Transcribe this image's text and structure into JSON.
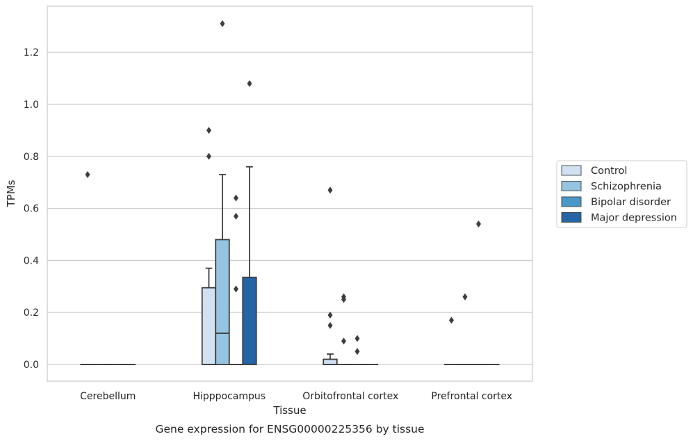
{
  "chart_data": {
    "type": "box",
    "xlabel": "Tissue",
    "ylabel": "TPMs",
    "caption": "Gene expression for ENSG00000225356 by tissue",
    "ylim": [
      -0.065,
      1.39
    ],
    "yticks": [
      "0.0",
      "0.2",
      "0.4",
      "0.6",
      "0.8",
      "1.0",
      "1.2"
    ],
    "grid": "horizontal",
    "legend_position": "right",
    "categories": [
      "Cerebellum",
      "Hipppocampus",
      "Orbitofrontal cortex",
      "Prefrontal cortex"
    ],
    "series": [
      {
        "name": "Control",
        "color": "#d0e1f2"
      },
      {
        "name": "Schizophrenia",
        "color": "#94c4df"
      },
      {
        "name": "Bipolar disorder",
        "color": "#4a98c9"
      },
      {
        "name": "Major depression",
        "color": "#2565a5"
      }
    ],
    "boxes": [
      {
        "category": "Cerebellum",
        "series": "Control",
        "q1": 0,
        "median": 0,
        "q3": 0,
        "whisker_low": 0,
        "whisker_high": 0,
        "outliers": [
          0.73
        ]
      },
      {
        "category": "Cerebellum",
        "series": "Schizophrenia",
        "q1": 0,
        "median": 0,
        "q3": 0,
        "whisker_low": 0,
        "whisker_high": 0,
        "outliers": []
      },
      {
        "category": "Cerebellum",
        "series": "Bipolar disorder",
        "q1": 0,
        "median": 0,
        "q3": 0,
        "whisker_low": 0,
        "whisker_high": 0,
        "outliers": []
      },
      {
        "category": "Cerebellum",
        "series": "Major depression",
        "q1": 0,
        "median": 0,
        "q3": 0,
        "whisker_low": 0,
        "whisker_high": 0,
        "outliers": []
      },
      {
        "category": "Hipppocampus",
        "series": "Control",
        "q1": 0,
        "median": 0,
        "q3": 0.295,
        "whisker_low": 0,
        "whisker_high": 0.37,
        "outliers": [
          0.9,
          0.8
        ]
      },
      {
        "category": "Hipppocampus",
        "series": "Schizophrenia",
        "q1": 0,
        "median": 0.12,
        "q3": 0.48,
        "whisker_low": 0,
        "whisker_high": 0.73,
        "outliers": [
          1.31
        ]
      },
      {
        "category": "Hipppocampus",
        "series": "Bipolar disorder",
        "q1": 0,
        "median": 0,
        "q3": 0,
        "whisker_low": 0,
        "whisker_high": 0,
        "outliers": [
          0.64,
          0.57,
          0.29
        ]
      },
      {
        "category": "Hipppocampus",
        "series": "Major depression",
        "q1": 0,
        "median": 0,
        "q3": 0.335,
        "whisker_low": 0,
        "whisker_high": 0.76,
        "outliers": [
          1.08
        ]
      },
      {
        "category": "Orbitofrontal cortex",
        "series": "Control",
        "q1": 0,
        "median": 0,
        "q3": 0.02,
        "whisker_low": 0,
        "whisker_high": 0.04,
        "outliers": [
          0.67,
          0.19,
          0.15
        ]
      },
      {
        "category": "Orbitofrontal cortex",
        "series": "Schizophrenia",
        "q1": 0,
        "median": 0,
        "q3": 0,
        "whisker_low": 0,
        "whisker_high": 0,
        "outliers": [
          0.26,
          0.25,
          0.09
        ]
      },
      {
        "category": "Orbitofrontal cortex",
        "series": "Bipolar disorder",
        "q1": 0,
        "median": 0,
        "q3": 0,
        "whisker_low": 0,
        "whisker_high": 0,
        "outliers": [
          0.1,
          0.05
        ]
      },
      {
        "category": "Orbitofrontal cortex",
        "series": "Major depression",
        "q1": 0,
        "median": 0,
        "q3": 0,
        "whisker_low": 0,
        "whisker_high": 0,
        "outliers": []
      },
      {
        "category": "Prefrontal cortex",
        "series": "Control",
        "q1": 0,
        "median": 0,
        "q3": 0,
        "whisker_low": 0,
        "whisker_high": 0,
        "outliers": [
          0.17
        ]
      },
      {
        "category": "Prefrontal cortex",
        "series": "Schizophrenia",
        "q1": 0,
        "median": 0,
        "q3": 0,
        "whisker_low": 0,
        "whisker_high": 0,
        "outliers": [
          0.26
        ]
      },
      {
        "category": "Prefrontal cortex",
        "series": "Bipolar disorder",
        "q1": 0,
        "median": 0,
        "q3": 0,
        "whisker_low": 0,
        "whisker_high": 0,
        "outliers": [
          0.54
        ]
      },
      {
        "category": "Prefrontal cortex",
        "series": "Major depression",
        "q1": 0,
        "median": 0,
        "q3": 0,
        "whisker_low": 0,
        "whisker_high": 0,
        "outliers": []
      }
    ]
  }
}
